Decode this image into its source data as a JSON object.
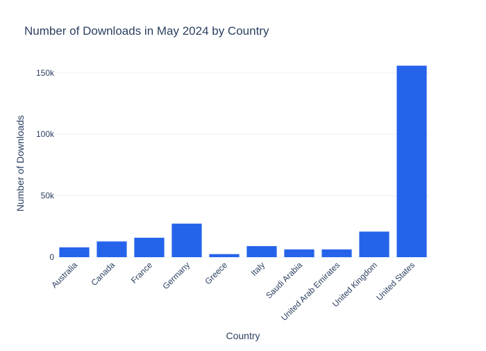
{
  "chart_data": {
    "type": "bar",
    "title": "Number of Downloads in May 2024 by Country",
    "xlabel": "Country",
    "ylabel": "Number of Downloads",
    "categories": [
      "Australia",
      "Canada",
      "France",
      "Germany",
      "Greece",
      "Italy",
      "Saudi Arabia",
      "United Arab Emirates",
      "United Kingdom",
      "United States"
    ],
    "values": [
      8000,
      12800,
      15800,
      27300,
      2500,
      9000,
      6300,
      6300,
      20800,
      155800
    ],
    "ylim": [
      0,
      164000
    ],
    "yticks": [
      0,
      50000,
      100000,
      150000
    ],
    "ytick_labels": [
      "0",
      "50k",
      "100k",
      "150k"
    ],
    "grid": true,
    "legend": "none"
  },
  "colors": {
    "bar": "#2563eb",
    "text": "#2a3f5f",
    "grid": "#ebf0f8",
    "background": "#ffffff"
  }
}
